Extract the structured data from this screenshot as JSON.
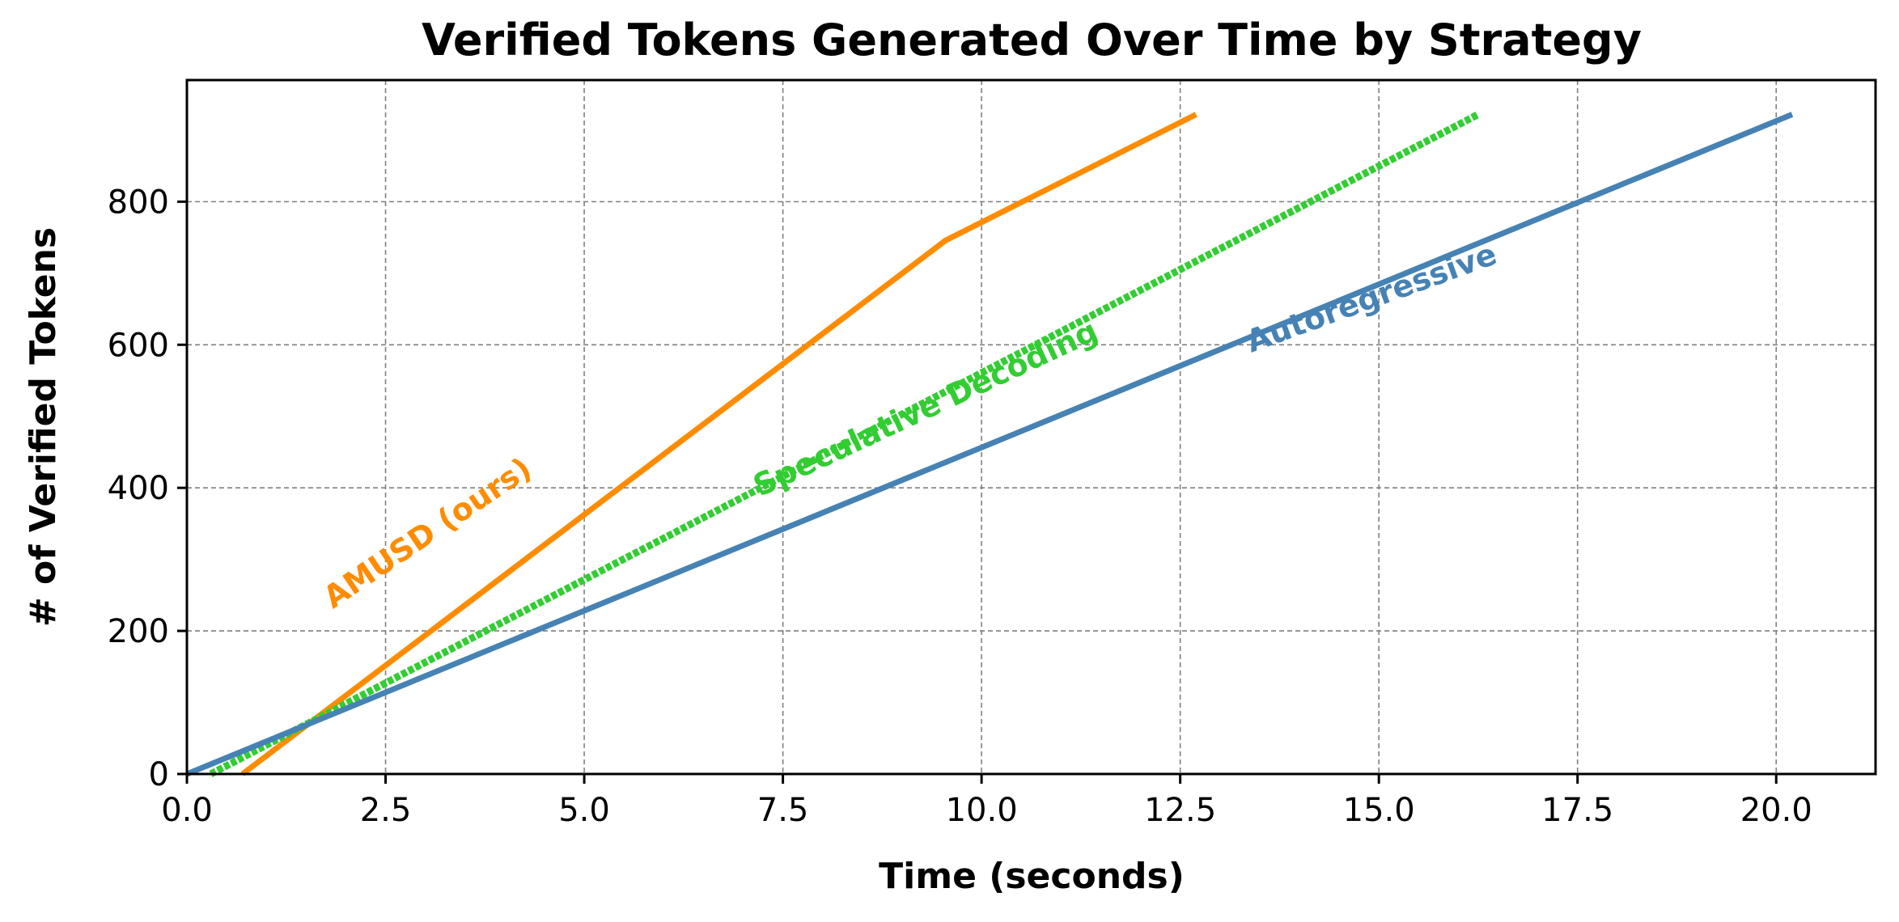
{
  "chart_data": {
    "type": "line",
    "title": "Verified Tokens Generated Over Time by Strategy",
    "xlabel": "Time (seconds)",
    "ylabel": "# of Verified Tokens",
    "xlim": [
      0,
      21.25
    ],
    "ylim": [
      0,
      970
    ],
    "xticks": [
      0,
      2.5,
      5,
      7.5,
      10,
      12.5,
      15,
      17.5,
      20
    ],
    "xtick_labels": [
      "0.0",
      "2.5",
      "5.0",
      "7.5",
      "10.0",
      "12.5",
      "15.0",
      "17.5",
      "20.0"
    ],
    "yticks": [
      0,
      200,
      400,
      600,
      800
    ],
    "ytick_labels": [
      "0",
      "200",
      "400",
      "600",
      "800"
    ],
    "grid": true,
    "legend": "none",
    "series": [
      {
        "name": "AMUSD (ours)",
        "color": "#ff8c00",
        "style": "solid",
        "x": [
          0.7,
          9.55,
          12.7
        ],
        "y": [
          0,
          746,
          922
        ],
        "label_anchor": [
          3.1,
          325
        ],
        "label_angle_deg": -34
      },
      {
        "name": "Speculative Decoding",
        "color": "#32cd32",
        "style": "dotted-thick",
        "x": [
          0.3,
          16.25
        ],
        "y": [
          0,
          922
        ],
        "label_anchor": [
          9.35,
          498
        ],
        "label_angle_deg": -25
      },
      {
        "name": "Autoregressive",
        "color": "#4682b4",
        "style": "solid",
        "x": [
          0,
          20.2
        ],
        "y": [
          0,
          922
        ],
        "label_anchor": [
          14.95,
          652
        ],
        "label_angle_deg": -20
      }
    ]
  }
}
